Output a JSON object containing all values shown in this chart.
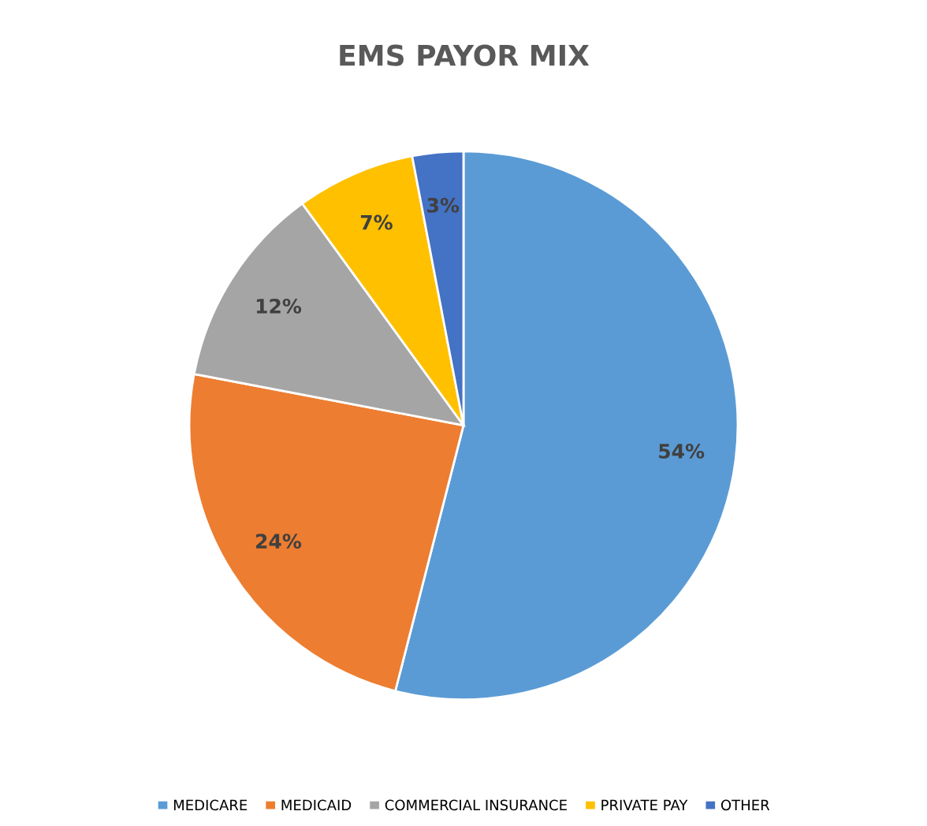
{
  "chart_data": {
    "type": "pie",
    "title": "EMS PAYOR MIX",
    "categories": [
      "MEDICARE",
      "MEDICAID",
      "COMMERCIAL INSURANCE",
      "PRIVATE PAY",
      "OTHER"
    ],
    "values": [
      54,
      24,
      12,
      7,
      3
    ],
    "colors": [
      "#5b9bd5",
      "#ed7d31",
      "#a5a5a5",
      "#ffc000",
      "#4472c4"
    ],
    "value_labels": [
      "54%",
      "24%",
      "12%",
      "7%",
      "3%"
    ],
    "legend": "bottom"
  }
}
